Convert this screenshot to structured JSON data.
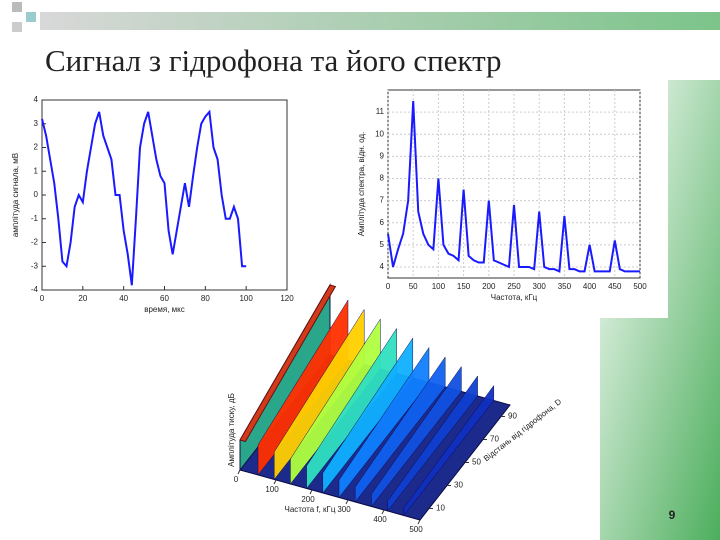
{
  "slide": {
    "title": "Сигнал з гідрофона та його спектр",
    "page_number": "9"
  },
  "chart_data": [
    {
      "type": "line",
      "color": "#1a1aff",
      "grid": false,
      "x_label": "время, мкс",
      "y_label": "амплітуда сигнала, мВ",
      "xlim": [
        0,
        120
      ],
      "xticks": [
        0,
        20,
        40,
        60,
        80,
        100,
        120
      ],
      "ylim": [
        -4,
        4
      ],
      "yticks": [
        -4,
        -3,
        -2,
        -1,
        0,
        1,
        2,
        3,
        4
      ],
      "x": [
        0,
        2,
        4,
        6,
        8,
        10,
        12,
        14,
        16,
        18,
        20,
        22,
        24,
        26,
        28,
        30,
        32,
        34,
        36,
        38,
        40,
        42,
        44,
        46,
        48,
        50,
        52,
        54,
        56,
        58,
        60,
        62,
        64,
        66,
        68,
        70,
        72,
        74,
        76,
        78,
        80,
        82,
        84,
        86,
        88,
        90,
        92,
        94,
        96,
        98,
        100
      ],
      "values": [
        3.2,
        2.5,
        1.5,
        0.5,
        -1,
        -2.8,
        -3,
        -2,
        -0.5,
        0,
        -0.3,
        1,
        2,
        3,
        3.5,
        2.5,
        2,
        1.5,
        0,
        0,
        -1.5,
        -2.5,
        -3.8,
        -1,
        2,
        3,
        3.5,
        2.5,
        1.5,
        0.8,
        0.5,
        -1.5,
        -2.5,
        -1.5,
        -0.5,
        0.5,
        -0.5,
        0.8,
        2,
        3,
        3.3,
        3.5,
        2,
        1.5,
        0,
        -1,
        -1,
        -0.5,
        -1,
        -3,
        -3
      ]
    },
    {
      "type": "line",
      "color": "#1a1aff",
      "grid": true,
      "x_label": "Частота, кГц",
      "y_label": "Амплітуда спектра, відн. од.",
      "xlim": [
        0,
        500
      ],
      "xticks": [
        0,
        50,
        100,
        150,
        200,
        250,
        300,
        350,
        400,
        450,
        500
      ],
      "ylim": [
        3.5,
        12
      ],
      "yticks": [
        4,
        5,
        6,
        7,
        8,
        9,
        10,
        11
      ],
      "x": [
        0,
        10,
        20,
        30,
        40,
        50,
        60,
        70,
        80,
        90,
        100,
        110,
        120,
        130,
        140,
        150,
        160,
        170,
        180,
        190,
        200,
        210,
        220,
        230,
        240,
        250,
        260,
        270,
        280,
        290,
        300,
        310,
        320,
        330,
        340,
        350,
        360,
        370,
        380,
        390,
        400,
        410,
        420,
        430,
        440,
        450,
        460,
        470,
        480,
        490,
        500
      ],
      "values": [
        5.5,
        4,
        4.8,
        5.5,
        7,
        11.5,
        6.5,
        5.5,
        5,
        4.8,
        8,
        5,
        4.6,
        4.5,
        4.3,
        7.5,
        4.5,
        4.3,
        4.2,
        4.2,
        7,
        4.3,
        4.2,
        4.1,
        4,
        6.8,
        4,
        4,
        4,
        3.9,
        6.5,
        4,
        3.9,
        3.9,
        3.8,
        6.3,
        3.9,
        3.9,
        3.8,
        3.8,
        5,
        3.8,
        3.8,
        3.8,
        3.8,
        5.2,
        3.9,
        3.8,
        3.8,
        3.8,
        3.8
      ]
    },
    {
      "type": "surface",
      "x_label": "Частота f, кГц",
      "y_label": "Відстань від гідрофона, D",
      "z_label": "Амплітуда тиску, дБ",
      "xlim": [
        0,
        500
      ],
      "xticks": [
        0,
        100,
        200,
        300,
        400,
        500
      ],
      "ylim": [
        0,
        100
      ],
      "yticks": [
        10,
        30,
        50,
        70,
        90
      ]
    }
  ]
}
